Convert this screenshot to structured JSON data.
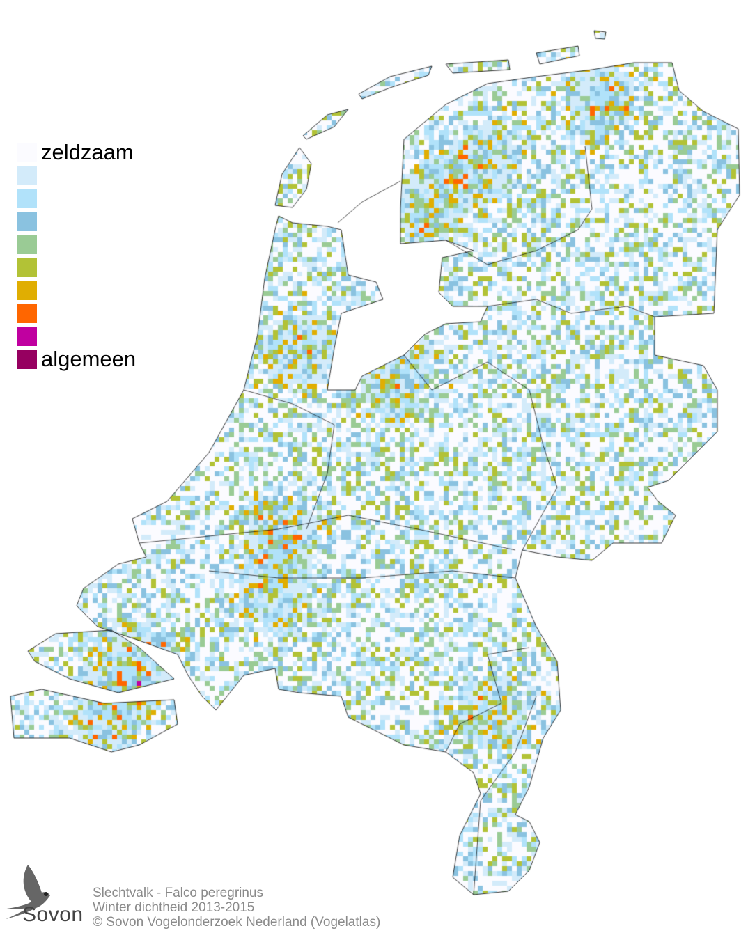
{
  "legend": {
    "items": [
      {
        "color": "#fbfbff",
        "label": "zeldzaam"
      },
      {
        "color": "#d3ebfa",
        "label": ""
      },
      {
        "color": "#b1e2fa",
        "label": ""
      },
      {
        "color": "#8ac2e0",
        "label": ""
      },
      {
        "color": "#9acb95",
        "label": ""
      },
      {
        "color": "#b2c236",
        "label": ""
      },
      {
        "color": "#e0ae02",
        "label": ""
      },
      {
        "color": "#ff6600",
        "label": ""
      },
      {
        "color": "#c000a0",
        "label": ""
      },
      {
        "color": "#960060",
        "label": "algemeen"
      }
    ]
  },
  "logo": {
    "text": "Sovon"
  },
  "caption": {
    "species": "Slechtvalk - Falco peregrinus",
    "subtitle": "Winter dichtheid 2013-2015",
    "copyright": "© Sovon Vogelonderzoek Nederland (Vogelatlas)"
  }
}
